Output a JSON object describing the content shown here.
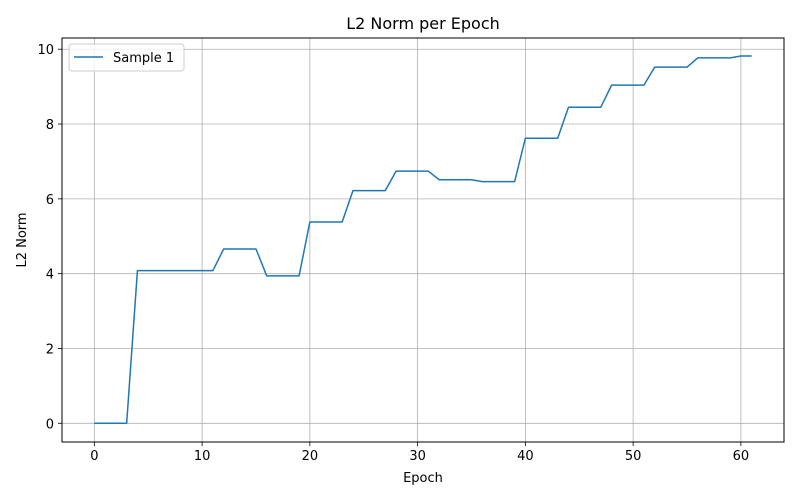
{
  "chart_data": {
    "type": "line",
    "title": "L2 Norm per Epoch",
    "xlabel": "Epoch",
    "ylabel": "L2 Norm",
    "xlim": [
      -3,
      64
    ],
    "ylim": [
      -0.5,
      10.3
    ],
    "xticks": [
      0,
      10,
      20,
      30,
      40,
      50,
      60
    ],
    "yticks": [
      0,
      2,
      4,
      6,
      8,
      10
    ],
    "grid": true,
    "legend_position": "top-left",
    "series": [
      {
        "name": "Sample 1",
        "color": "#1f77b4",
        "x": [
          0,
          1,
          2,
          3,
          4,
          5,
          6,
          7,
          8,
          9,
          10,
          11,
          12,
          13,
          14,
          15,
          16,
          17,
          18,
          19,
          20,
          21,
          22,
          23,
          24,
          25,
          26,
          27,
          28,
          29,
          30,
          31,
          32,
          33,
          34,
          35,
          36,
          37,
          38,
          39,
          40,
          41,
          42,
          43,
          44,
          45,
          46,
          47,
          48,
          49,
          50,
          51,
          52,
          53,
          54,
          55,
          56,
          57,
          58,
          59,
          60,
          61
        ],
        "y": [
          0,
          0,
          0,
          0,
          4.08,
          4.08,
          4.08,
          4.08,
          4.08,
          4.08,
          4.08,
          4.08,
          4.66,
          4.66,
          4.66,
          4.66,
          3.94,
          3.94,
          3.94,
          3.94,
          5.38,
          5.38,
          5.38,
          5.38,
          6.22,
          6.22,
          6.22,
          6.22,
          6.74,
          6.74,
          6.74,
          6.74,
          6.51,
          6.51,
          6.51,
          6.51,
          6.46,
          6.46,
          6.46,
          6.46,
          7.62,
          7.62,
          7.62,
          7.62,
          8.45,
          8.45,
          8.45,
          8.45,
          9.04,
          9.04,
          9.04,
          9.04,
          9.52,
          9.52,
          9.52,
          9.52,
          9.77,
          9.77,
          9.77,
          9.77,
          9.82,
          9.82
        ]
      }
    ]
  }
}
